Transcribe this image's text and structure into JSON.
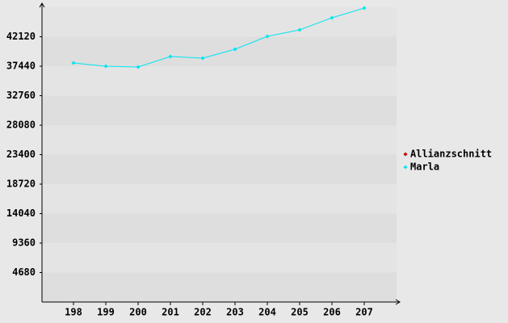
{
  "chart_data": {
    "type": "line",
    "categories": [
      "198",
      "199",
      "200",
      "201",
      "202",
      "203",
      "204",
      "205",
      "206",
      "207"
    ],
    "series": [
      {
        "name": "Allianzschnitt",
        "color": "#cc0000",
        "values": [
          null,
          null,
          null,
          null,
          null,
          null,
          null,
          null,
          null,
          null
        ]
      },
      {
        "name": "Marla",
        "color": "#00e5f0",
        "values": [
          37950,
          37440,
          37310,
          38980,
          38720,
          40130,
          42180,
          43210,
          45130,
          46670
        ]
      }
    ],
    "ylim": [
      0,
      46800
    ],
    "yticks": [
      4680,
      9360,
      14040,
      18720,
      23400,
      28080,
      32760,
      37440,
      42120
    ],
    "grid": true,
    "legend": "right"
  }
}
